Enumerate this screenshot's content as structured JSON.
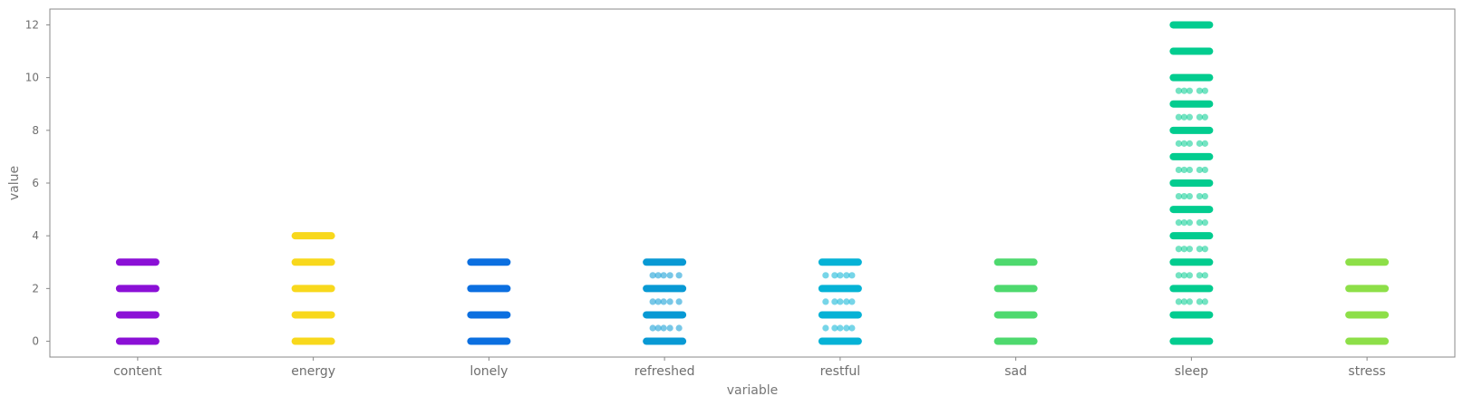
{
  "chart_data": {
    "type": "scatter",
    "subtype": "strip",
    "xlabel": "variable",
    "ylabel": "value",
    "ylim": [
      -0.6,
      12.6
    ],
    "yticks": [
      "0",
      "2",
      "4",
      "6",
      "8",
      "10",
      "12"
    ],
    "categories": [
      "content",
      "energy",
      "lonely",
      "refreshed",
      "restful",
      "sad",
      "sleep",
      "stress"
    ],
    "grid": false,
    "legend": "none",
    "series": [
      {
        "category": "content",
        "color": "#8b10d6",
        "values": [
          0,
          1,
          2,
          3
        ]
      },
      {
        "category": "energy",
        "color": "#f8d81c",
        "values": [
          0,
          1,
          2,
          3,
          4
        ]
      },
      {
        "category": "lonely",
        "color": "#0b6fe0",
        "values": [
          0,
          1,
          2,
          3
        ]
      },
      {
        "category": "refreshed",
        "color": "#0899d4",
        "values": [
          0,
          0.5,
          1,
          1.5,
          2,
          2.5,
          3
        ]
      },
      {
        "category": "restful",
        "color": "#05b2d6",
        "values": [
          0,
          0.5,
          1,
          1.5,
          2,
          2.5,
          3
        ]
      },
      {
        "category": "sad",
        "color": "#4ed96e",
        "values": [
          0,
          1,
          2,
          3
        ]
      },
      {
        "category": "sleep",
        "color": "#02cc8f",
        "values": [
          0,
          1,
          1.5,
          2,
          2.5,
          3,
          3.5,
          4,
          4.5,
          5,
          5.5,
          6,
          6.5,
          7,
          7.5,
          8,
          8.5,
          9,
          9.5,
          10,
          11,
          12
        ]
      },
      {
        "category": "stress",
        "color": "#8ddf48",
        "values": [
          0,
          1,
          2,
          3
        ]
      }
    ]
  }
}
